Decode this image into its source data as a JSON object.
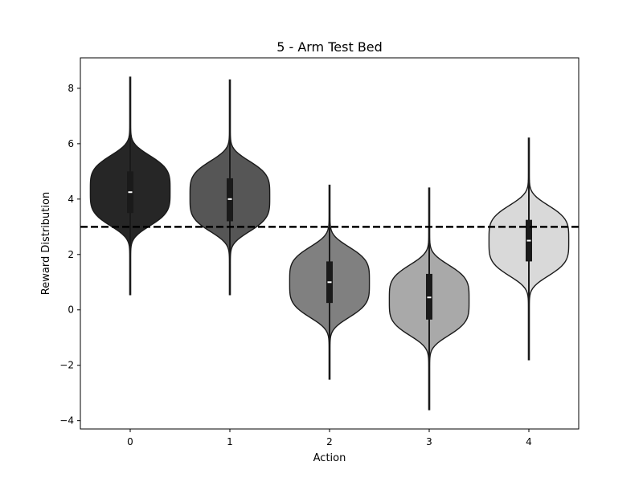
{
  "chart_data": {
    "type": "violin",
    "title": "5 - Arm Test Bed",
    "xlabel": "Action",
    "ylabel": "Reward Distribution",
    "categories": [
      "0",
      "1",
      "2",
      "3",
      "4"
    ],
    "y_ticks": [
      -4,
      -2,
      0,
      2,
      4,
      6,
      8
    ],
    "y_tick_labels": [
      "−4",
      "−2",
      "0",
      "2",
      "4",
      "6",
      "8"
    ],
    "ylim": [
      -4.3,
      9.1
    ],
    "grid": false,
    "legend": false,
    "reference_line": {
      "y": 3.0,
      "style": "dashed",
      "color": "#000000"
    },
    "violins": [
      {
        "category": "0",
        "color": "#262626",
        "min": 0.55,
        "q1": 3.5,
        "median": 4.25,
        "q3": 5.0,
        "max": 8.4,
        "whisker_low": 2.3,
        "whisker_high": 7.1,
        "mode": 4.3,
        "spread": 0.95
      },
      {
        "category": "1",
        "color": "#565656",
        "min": 0.55,
        "q1": 3.2,
        "median": 4.0,
        "q3": 4.75,
        "max": 8.3,
        "whisker_low": 1.4,
        "whisker_high": 7.2,
        "mode": 4.1,
        "spread": 0.95
      },
      {
        "category": "2",
        "color": "#808080",
        "min": -2.5,
        "q1": 0.25,
        "median": 1.0,
        "q3": 1.75,
        "max": 4.5,
        "whisker_low": -1.7,
        "whisker_high": 3.6,
        "mode": 1.0,
        "spread": 0.95
      },
      {
        "category": "3",
        "color": "#a9a9a9",
        "min": -3.6,
        "q1": -0.35,
        "median": 0.45,
        "q3": 1.3,
        "max": 4.4,
        "whisker_low": -2.4,
        "whisker_high": 3.4,
        "mode": 0.35,
        "spread": 0.95
      },
      {
        "category": "4",
        "color": "#d9d9d9",
        "min": -1.8,
        "q1": 1.75,
        "median": 2.5,
        "q3": 3.25,
        "max": 6.2,
        "whisker_low": -0.1,
        "whisker_high": 5.0,
        "mode": 2.5,
        "spread": 0.95
      }
    ]
  }
}
